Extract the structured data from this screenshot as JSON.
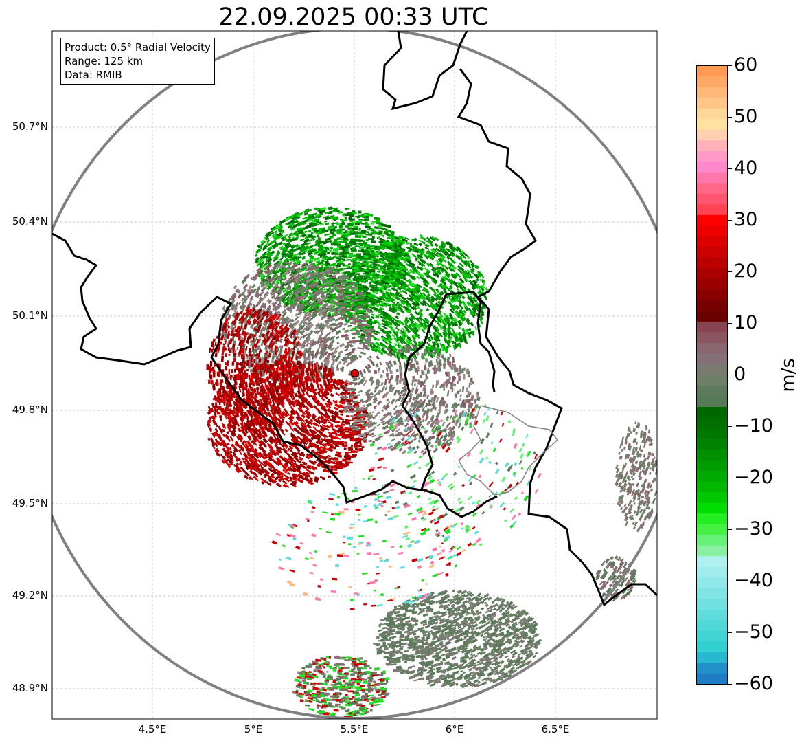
{
  "title": "22.09.2025 00:33 UTC",
  "info": {
    "product": "Product: 0.5° Radial Velocity",
    "range": "Range: 125 km",
    "data": "Data: RMIB"
  },
  "map": {
    "lat_ticks": [
      "50.7°N",
      "50.4°N",
      "50.1°N",
      "49.8°N",
      "49.5°N",
      "49.2°N",
      "48.9°N"
    ],
    "lon_ticks": [
      "4.5°E",
      "5°E",
      "5.5°E",
      "6°E",
      "6.5°E"
    ],
    "radar_site": {
      "lon": 5.505,
      "lat": 49.914
    },
    "range_ring_color": "#808080",
    "border_color": "#000000"
  },
  "colorbar": {
    "unit": "m/s",
    "min": -60,
    "max": 60,
    "ticks": [
      "60",
      "50",
      "40",
      "30",
      "20",
      "10",
      "0",
      "−10",
      "−20",
      "−30",
      "−40",
      "−50",
      "−60"
    ],
    "colors_top_to_bottom": [
      "#ff9a55",
      "#ffa866",
      "#ffb877",
      "#ffc688",
      "#ffd69a",
      "#ffe2a0",
      "#ffcfb0",
      "#ffb0b8",
      "#ff99c8",
      "#ff88cc",
      "#ff77aa",
      "#ff6688",
      "#ff5570",
      "#ff4455",
      "#ff0000",
      "#ee0000",
      "#dd0000",
      "#cc0000",
      "#bb0000",
      "#aa0000",
      "#990000",
      "#880000",
      "#770000",
      "#6b0000",
      "#884450",
      "#8a5560",
      "#8a6670",
      "#857078",
      "#7a7a70",
      "#6e8068",
      "#5e7a5c",
      "#557a55",
      "#006600",
      "#006e00",
      "#007800",
      "#008400",
      "#009000",
      "#009c00",
      "#00aa00",
      "#00b800",
      "#00c800",
      "#00dd00",
      "#22ee22",
      "#44f044",
      "#66f077",
      "#88f0a0",
      "#b0f0f0",
      "#a0ecec",
      "#90e8e8",
      "#80e4e4",
      "#70e0e0",
      "#60dcdc",
      "#50d8d8",
      "#40d4d4",
      "#30d0d0",
      "#28b8d0",
      "#2090c8",
      "#1e7dc4"
    ]
  }
}
